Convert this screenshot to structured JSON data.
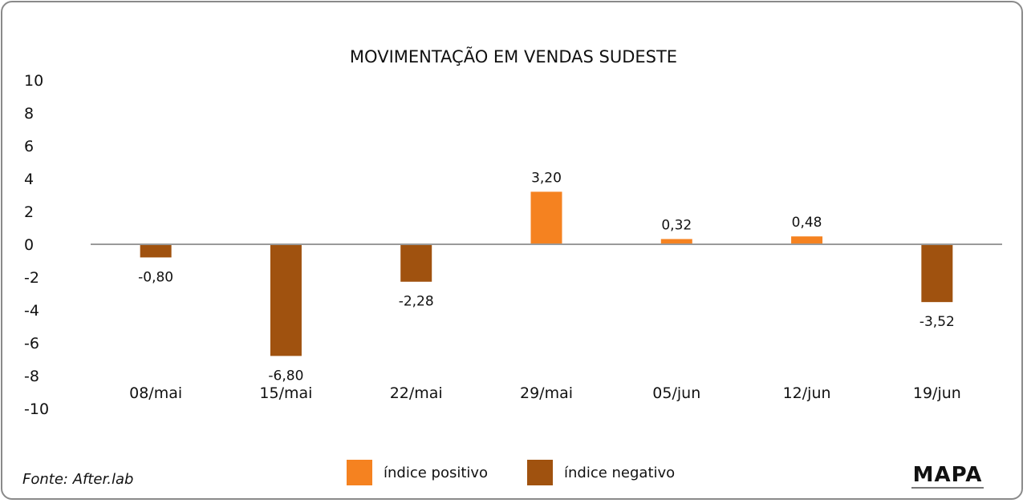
{
  "chart_data": {
    "type": "bar",
    "title": "MOVIMENTAÇÃO EM VENDAS SUDESTE",
    "categories": [
      "08/mai",
      "15/mai",
      "22/mai",
      "29/mai",
      "05/jun",
      "12/jun",
      "19/jun"
    ],
    "values": [
      -0.8,
      -6.8,
      -2.28,
      3.2,
      0.32,
      0.48,
      -3.52
    ],
    "value_labels": [
      "-0,80",
      "-6,80",
      "-2,28",
      "3,20",
      "0,32",
      "0,48",
      "-3,52"
    ],
    "ylim": [
      -10,
      10
    ],
    "yticks": [
      10,
      8,
      6,
      4,
      2,
      0,
      -2,
      -4,
      -6,
      -8,
      -10
    ],
    "xlabel": "",
    "ylabel": "",
    "grid": false,
    "legend": [
      {
        "label": "índice positivo",
        "color": "#f58220"
      },
      {
        "label": "índice negativo",
        "color": "#a0520f"
      }
    ],
    "legend_position": "bottom"
  },
  "source": "Fonte: After.lab",
  "logo": {
    "text": "MAPA"
  },
  "colors": {
    "positive": "#f58220",
    "negative": "#a0520f",
    "axis": "#9a9a9a"
  }
}
